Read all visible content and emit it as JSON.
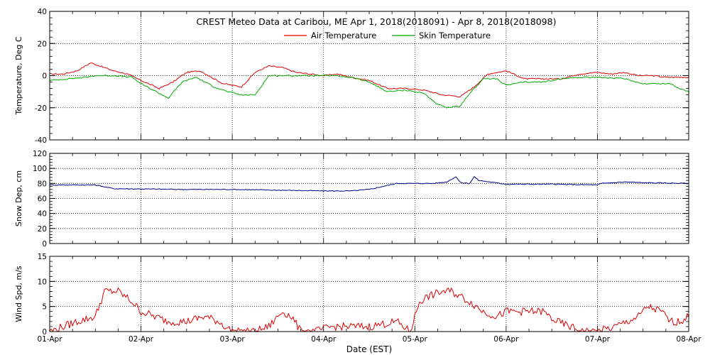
{
  "chart_data": [
    {
      "type": "line",
      "title": "CREST Meteo Data at Caribou, ME   Apr  1, 2018(2018091) - Apr  8, 2018(2018098)",
      "ylabel": "Temperature, Deg C",
      "ylim": [
        -40,
        40
      ],
      "yticks": [
        "-40",
        "-20",
        "0",
        "20",
        "40"
      ],
      "grid": true,
      "legend_position": "top-center",
      "series": [
        {
          "name": "Air Temperature",
          "color": "#dd0000",
          "x": [
            0,
            0.15,
            0.3,
            0.45,
            0.6,
            0.7,
            0.85,
            1.0,
            1.2,
            1.35,
            1.5,
            1.65,
            1.8,
            1.9,
            2.0,
            2.1,
            2.25,
            2.4,
            2.55,
            2.7,
            2.85,
            3.0,
            3.15,
            3.3,
            3.5,
            3.7,
            3.9,
            4.1,
            4.3,
            4.5,
            4.65,
            4.8,
            5.0,
            5.2,
            5.4,
            5.6,
            5.8,
            6.0,
            6.15,
            6.3,
            6.45,
            6.6,
            6.75,
            6.9,
            7.0
          ],
          "y": [
            1,
            1,
            3,
            8,
            5,
            3,
            1,
            -3,
            -8,
            -4,
            2,
            3,
            -2,
            -5,
            -6,
            -7,
            2,
            6,
            5,
            2,
            1,
            0,
            1,
            -1,
            -3,
            -8,
            -8,
            -9,
            -12,
            -13,
            -7,
            1,
            3,
            -2,
            -2,
            -2,
            1,
            2,
            1,
            2,
            0,
            0,
            -1,
            -1,
            -1
          ],
          "values": [
            1,
            1,
            3,
            8,
            5,
            3,
            1,
            -3,
            -8,
            -4,
            2,
            3,
            -2,
            -5,
            -6,
            -7,
            2,
            6,
            5,
            2,
            1,
            0,
            1,
            -1,
            -3,
            -8,
            -8,
            -9,
            -12,
            -13,
            -7,
            1,
            3,
            -2,
            -2,
            -2,
            1,
            2,
            1,
            2,
            0,
            0,
            -1,
            -1,
            -1
          ]
        },
        {
          "name": "Skin Temperature",
          "color": "#00aa00",
          "x": [
            0,
            0.2,
            0.4,
            0.5,
            0.7,
            0.9,
            1.0,
            1.2,
            1.3,
            1.45,
            1.6,
            1.8,
            1.95,
            2.1,
            2.25,
            2.4,
            2.6,
            2.9,
            3.1,
            3.3,
            3.5,
            3.7,
            3.9,
            4.1,
            4.25,
            4.35,
            4.5,
            4.6,
            4.75,
            4.9,
            5.0,
            5.2,
            5.4,
            5.6,
            5.8,
            6.0,
            6.3,
            6.5,
            6.75,
            6.8,
            6.9,
            7.0
          ],
          "y": [
            -3,
            -2,
            -1,
            0,
            0,
            -1,
            -5,
            -11,
            -14,
            -4,
            -1,
            -7,
            -10,
            -12,
            -12,
            0,
            0,
            0,
            0,
            -1,
            -4,
            -10,
            -9,
            -11,
            -18,
            -20,
            -19,
            -11,
            -2,
            -2,
            -6,
            -4,
            -4,
            -2,
            -1,
            -1,
            -2,
            -5,
            -5,
            -5,
            -8,
            -10
          ],
          "values": [
            -3,
            -2,
            -1,
            0,
            0,
            -1,
            -5,
            -11,
            -14,
            -4,
            -1,
            -7,
            -10,
            -12,
            -12,
            0,
            0,
            0,
            0,
            -1,
            -4,
            -10,
            -9,
            -11,
            -18,
            -20,
            -19,
            -11,
            -2,
            -2,
            -6,
            -4,
            -4,
            -2,
            -1,
            -1,
            -2,
            -5,
            -5,
            -5,
            -8,
            -10
          ]
        }
      ]
    },
    {
      "type": "line",
      "title": "",
      "ylabel": "Snow Dep, cm",
      "ylim": [
        0,
        120
      ],
      "yticks": [
        "0",
        "20",
        "40",
        "60",
        "80",
        "100",
        "120"
      ],
      "grid": true,
      "series": [
        {
          "name": "",
          "color": "#000080",
          "x": [
            0,
            0.5,
            0.7,
            1.5,
            2.0,
            2.5,
            3.0,
            3.3,
            3.5,
            3.8,
            4.0,
            4.2,
            4.35,
            4.45,
            4.5,
            4.6,
            4.65,
            4.7,
            5.0,
            5.5,
            6.0,
            6.05,
            6.3,
            6.5,
            7.0
          ],
          "y": [
            78,
            78,
            73,
            72,
            72,
            71,
            70,
            70,
            72,
            80,
            80,
            80,
            82,
            89,
            81,
            80,
            89,
            84,
            79,
            79,
            78,
            80,
            82,
            81,
            80
          ],
          "values": [
            78,
            78,
            73,
            72,
            72,
            71,
            70,
            70,
            72,
            80,
            80,
            80,
            82,
            89,
            81,
            80,
            89,
            84,
            79,
            79,
            78,
            80,
            82,
            81,
            80
          ]
        }
      ]
    },
    {
      "type": "line",
      "title": "",
      "xlabel": "Date (EST)",
      "ylabel": "Wind Spd, m/s",
      "ylim": [
        0,
        15
      ],
      "yticks": [
        "0",
        "5",
        "10",
        "15"
      ],
      "grid": true,
      "categories": [
        "01-Apr",
        "02-Apr",
        "03-Apr",
        "04-Apr",
        "05-Apr",
        "06-Apr",
        "07-Apr",
        "08-Apr"
      ],
      "series": [
        {
          "name": "",
          "color": "#dd0000",
          "x": [
            0,
            0.15,
            0.3,
            0.5,
            0.6,
            0.75,
            0.9,
            1.0,
            1.15,
            1.3,
            1.5,
            1.7,
            1.85,
            2.0,
            2.25,
            2.4,
            2.55,
            2.65,
            2.75,
            2.9,
            3.1,
            3.3,
            3.5,
            3.8,
            3.95,
            4.05,
            4.15,
            4.3,
            4.4,
            4.5,
            4.6,
            4.75,
            4.9,
            5.0,
            5.2,
            5.4,
            5.55,
            5.7,
            5.85,
            6.0,
            6.2,
            6.45,
            6.55,
            6.7,
            6.8,
            6.9,
            7.0
          ],
          "y": [
            0,
            1,
            2,
            3,
            8,
            8,
            6,
            4,
            3,
            2,
            2,
            3,
            2,
            0,
            0,
            1,
            4,
            3,
            0,
            0,
            1,
            1,
            1,
            2,
            0,
            6,
            7,
            8,
            8,
            7,
            6,
            4,
            3,
            4,
            4,
            4,
            2,
            1,
            0,
            0,
            1,
            3,
            5,
            4,
            2,
            2,
            3
          ],
          "values": [
            0,
            1,
            2,
            3,
            8,
            8,
            6,
            4,
            3,
            2,
            2,
            3,
            2,
            0,
            0,
            1,
            4,
            3,
            0,
            0,
            1,
            1,
            1,
            2,
            0,
            6,
            7,
            8,
            8,
            7,
            6,
            4,
            3,
            4,
            4,
            4,
            2,
            1,
            0,
            0,
            1,
            3,
            5,
            4,
            2,
            2,
            3
          ]
        }
      ]
    }
  ]
}
